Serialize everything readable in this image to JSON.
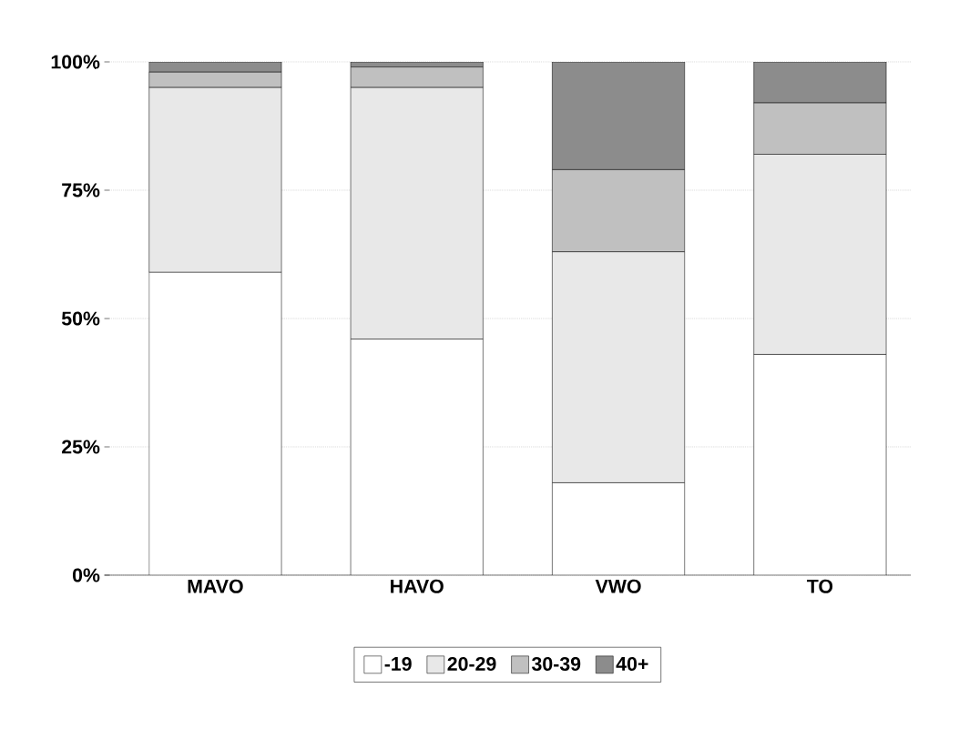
{
  "chart_data": {
    "type": "bar",
    "stacked": true,
    "categories": [
      "MAVO",
      "HAVO",
      "VWO",
      "TO"
    ],
    "series": [
      {
        "name": "-19",
        "color": "#ffffff",
        "values": [
          59,
          46,
          18,
          43
        ]
      },
      {
        "name": "20-29",
        "color": "#e8e8e8",
        "values": [
          36,
          49,
          45,
          39
        ]
      },
      {
        "name": "30-39",
        "color": "#c0c0c0",
        "values": [
          3,
          4,
          16,
          10
        ]
      },
      {
        "name": "40+",
        "color": "#8c8c8c",
        "values": [
          2,
          1,
          21,
          8
        ]
      }
    ],
    "ylim": [
      0,
      100
    ],
    "yticks": [
      {
        "value": 0,
        "label": "0%"
      },
      {
        "value": 25,
        "label": "25%"
      },
      {
        "value": 50,
        "label": "50%"
      },
      {
        "value": 75,
        "label": "75%"
      },
      {
        "value": 100,
        "label": "100%"
      }
    ],
    "grid": "y",
    "legend": "bottom"
  }
}
